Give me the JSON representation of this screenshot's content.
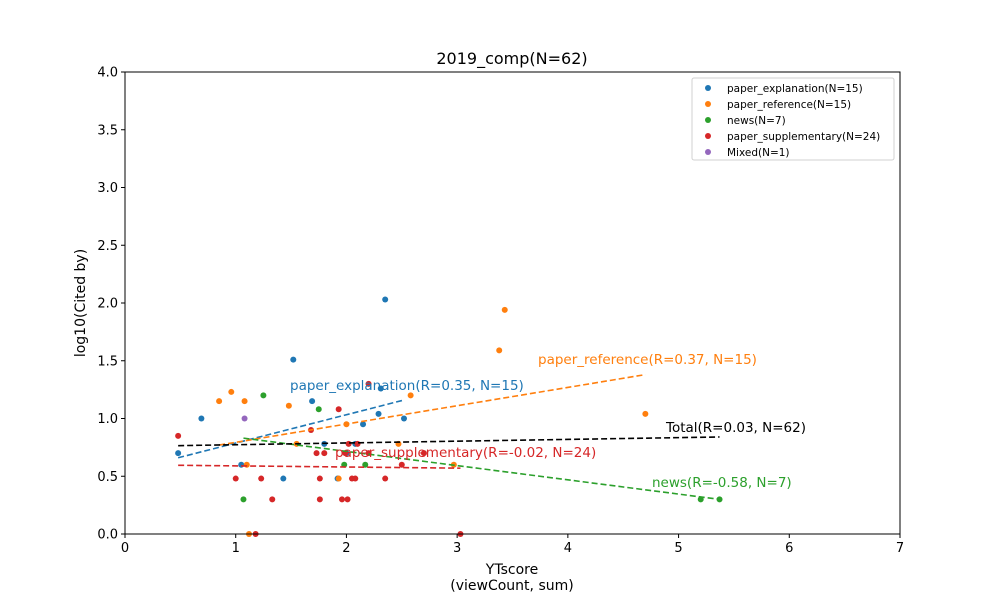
{
  "chart_data": {
    "type": "scatter",
    "title": "2019_comp(N=62)",
    "xlabel": "YTscore",
    "xlabel2": "(viewCount, sum)",
    "ylabel": "log10(Cited by)",
    "xlim": [
      0,
      7
    ],
    "ylim": [
      0,
      4.0
    ],
    "xticks": [
      "0",
      "1",
      "2",
      "3",
      "4",
      "5",
      "6",
      "7"
    ],
    "yticks": [
      "0.0",
      "0.5",
      "1.0",
      "1.5",
      "2.0",
      "2.5",
      "3.0",
      "3.5",
      "4.0"
    ],
    "grid": false,
    "legend_position": "top-right",
    "series": [
      {
        "name": "paper_explanation(N=15)",
        "color": "#1f77b4",
        "points": [
          [
            0.48,
            0.7
          ],
          [
            0.69,
            1.0
          ],
          [
            1.05,
            0.6
          ],
          [
            1.43,
            0.48
          ],
          [
            1.52,
            1.51
          ],
          [
            1.69,
            1.15
          ],
          [
            1.8,
            0.78
          ],
          [
            1.92,
            0.48
          ],
          [
            2.08,
            0.78
          ],
          [
            2.15,
            0.95
          ],
          [
            2.29,
            1.04
          ],
          [
            2.31,
            1.26
          ],
          [
            2.35,
            2.03
          ],
          [
            2.52,
            1.0
          ],
          [
            2.0,
            0.7
          ]
        ],
        "fit": {
          "x": [
            0.48,
            2.52
          ],
          "y": [
            0.66,
            1.16
          ]
        },
        "annotation": "paper_explanation(R=0.35, N=15)"
      },
      {
        "name": "paper_reference(N=15)",
        "color": "#ff7f0e",
        "points": [
          [
            0.85,
            1.15
          ],
          [
            0.96,
            1.23
          ],
          [
            1.08,
            1.15
          ],
          [
            1.1,
            0.6
          ],
          [
            1.12,
            0.0
          ],
          [
            1.48,
            1.11
          ],
          [
            1.55,
            0.78
          ],
          [
            1.93,
            0.48
          ],
          [
            2.0,
            0.95
          ],
          [
            2.47,
            0.78
          ],
          [
            2.58,
            1.2
          ],
          [
            2.97,
            0.6
          ],
          [
            3.38,
            1.59
          ],
          [
            3.43,
            1.94
          ],
          [
            4.7,
            1.04
          ]
        ],
        "fit": {
          "x": [
            0.85,
            4.7
          ],
          "y": [
            0.77,
            1.38
          ]
        },
        "annotation": "paper_reference(R=0.37, N=15)"
      },
      {
        "name": "news(N=7)",
        "color": "#2ca02c",
        "points": [
          [
            1.07,
            0.3
          ],
          [
            1.25,
            1.2
          ],
          [
            1.75,
            1.08
          ],
          [
            1.98,
            0.6
          ],
          [
            2.17,
            0.6
          ],
          [
            5.2,
            0.3
          ],
          [
            5.37,
            0.3
          ]
        ],
        "fit": {
          "x": [
            1.07,
            5.37
          ],
          "y": [
            0.83,
            0.3
          ]
        },
        "annotation": "news(R=-0.58, N=7)"
      },
      {
        "name": "paper_supplementary(N=24)",
        "color": "#d62728",
        "points": [
          [
            0.48,
            0.85
          ],
          [
            1.0,
            0.48
          ],
          [
            1.18,
            0.0
          ],
          [
            1.23,
            0.48
          ],
          [
            1.33,
            0.3
          ],
          [
            1.68,
            0.9
          ],
          [
            1.73,
            0.7
          ],
          [
            1.76,
            0.48
          ],
          [
            1.76,
            0.3
          ],
          [
            1.8,
            0.7
          ],
          [
            1.93,
            1.08
          ],
          [
            1.96,
            0.3
          ],
          [
            2.01,
            0.3
          ],
          [
            2.02,
            0.78
          ],
          [
            2.05,
            0.48
          ],
          [
            2.08,
            0.48
          ],
          [
            2.1,
            0.78
          ],
          [
            2.2,
            0.7
          ],
          [
            2.2,
            1.3
          ],
          [
            2.35,
            0.48
          ],
          [
            2.5,
            0.6
          ],
          [
            2.7,
            0.7
          ],
          [
            3.03,
            0.0
          ],
          [
            1.99,
            0.7
          ]
        ],
        "fit": {
          "x": [
            0.48,
            3.03
          ],
          "y": [
            0.595,
            0.57
          ]
        },
        "annotation": "paper_supplementary(R=-0.02, N=24)"
      },
      {
        "name": "Mixed(N=1)",
        "color": "#9467bd",
        "points": [
          [
            1.08,
            1.0
          ]
        ]
      }
    ],
    "total_fit": {
      "x": [
        0.48,
        5.37
      ],
      "y": [
        0.765,
        0.84
      ],
      "color": "#000000",
      "annotation": "Total(R=0.03, N=62)"
    }
  }
}
